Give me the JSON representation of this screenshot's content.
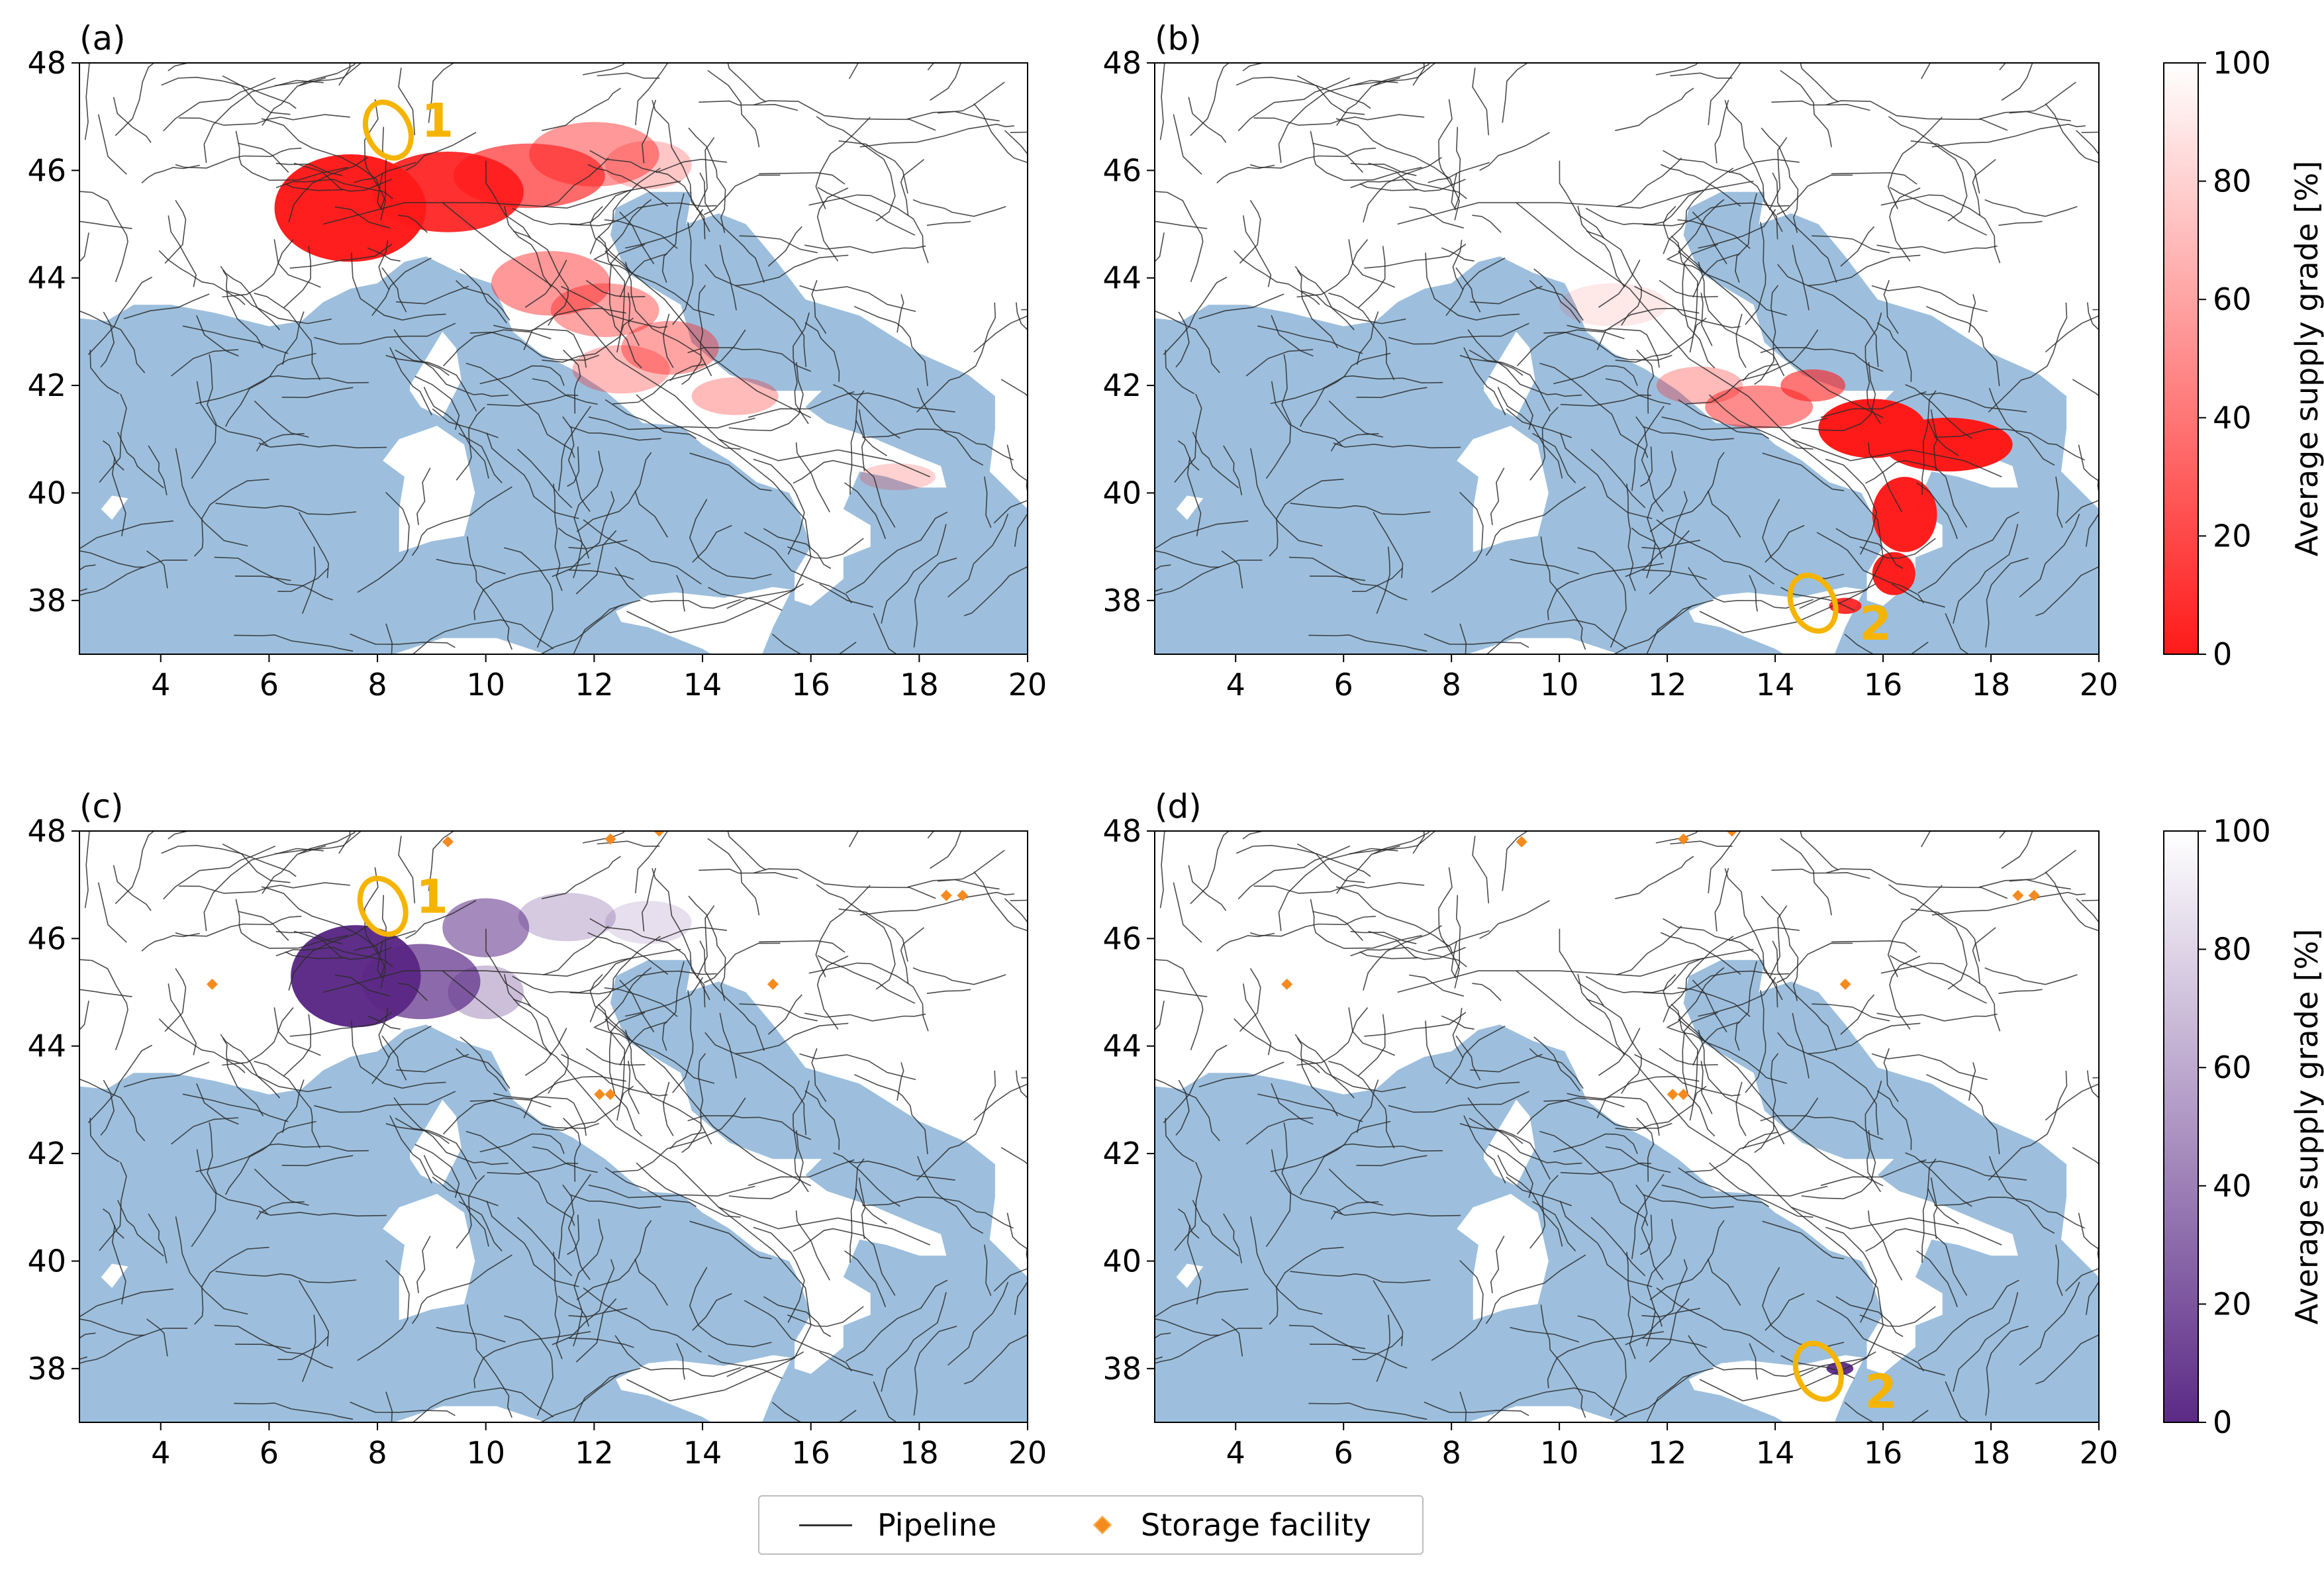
{
  "panels": [
    {
      "id": "a",
      "label": "(a)",
      "colormap": "red",
      "show_storage": false,
      "annotations": [
        {
          "number": "1",
          "lon": 8.2,
          "lat": 46.75
        }
      ]
    },
    {
      "id": "b",
      "label": "(b)",
      "colormap": "red",
      "show_storage": false,
      "annotations": [
        {
          "number": "2",
          "lon": 14.7,
          "lat": 37.95
        }
      ]
    },
    {
      "id": "c",
      "label": "(c)",
      "colormap": "purple",
      "show_storage": true,
      "annotations": [
        {
          "number": "1",
          "lon": 8.1,
          "lat": 46.6
        }
      ]
    },
    {
      "id": "d",
      "label": "(d)",
      "colormap": "purple",
      "show_storage": true,
      "annotations": [
        {
          "number": "2",
          "lon": 14.8,
          "lat": 37.95
        }
      ]
    }
  ],
  "axes": {
    "x_ticks": [
      "4",
      "6",
      "8",
      "10",
      "12",
      "14",
      "16",
      "18",
      "20"
    ],
    "y_ticks": [
      "38",
      "40",
      "42",
      "44",
      "46",
      "48"
    ],
    "xlim": [
      2.5,
      20
    ],
    "ylim": [
      37,
      48
    ]
  },
  "colorbars": [
    {
      "label": "Average supply grade [%]",
      "ticks": [
        "0",
        "20",
        "40",
        "60",
        "80",
        "100"
      ],
      "min_color": "#ff1a1a",
      "max_color": "#ffffff"
    },
    {
      "label": "Average supply grade [%]",
      "ticks": [
        "0",
        "20",
        "40",
        "60",
        "80",
        "100"
      ],
      "min_color": "#5b2a86",
      "max_color": "#ffffff"
    }
  ],
  "legend": {
    "pipeline": "Pipeline",
    "storage": "Storage facility"
  },
  "storage_facilities": [
    {
      "lon": 9.3,
      "lat": 47.8
    },
    {
      "lon": 12.3,
      "lat": 47.85
    },
    {
      "lon": 13.2,
      "lat": 48.0
    },
    {
      "lon": 18.5,
      "lat": 46.8
    },
    {
      "lon": 18.8,
      "lat": 46.8
    },
    {
      "lon": 4.95,
      "lat": 45.15
    },
    {
      "lon": 15.3,
      "lat": 45.15
    },
    {
      "lon": 12.1,
      "lat": 43.1
    },
    {
      "lon": 12.3,
      "lat": 43.1
    }
  ],
  "colors": {
    "sea": "#9dbfdd",
    "land": "#ffffff",
    "pipeline": "#2b2b2b",
    "annotation": "#f5b400",
    "storage": "#f58a1f",
    "red_full": "#ff1a1a",
    "purple_full": "#5b2a86"
  }
}
